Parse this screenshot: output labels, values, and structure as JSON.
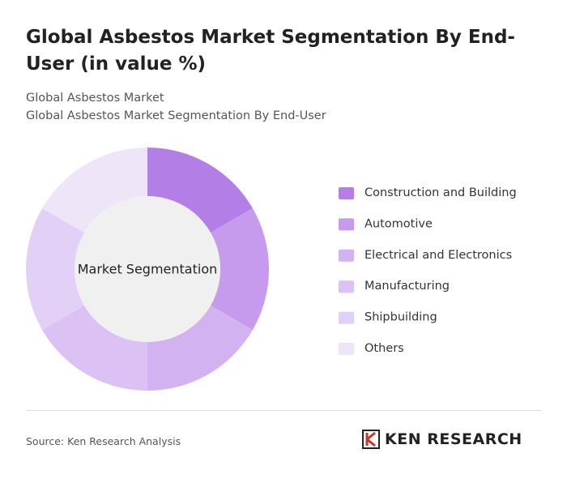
{
  "chart_data": {
    "type": "donut",
    "title": "Global Asbestos Market Segmentation By End-User (in value %)",
    "subtitle": [
      "Global Asbestos Market",
      "Global Asbestos Market Segmentation By End-User"
    ],
    "center_label": "Market Segmentation",
    "categories": [
      "Construction and Building",
      "Automotive",
      "Electrical and Electronics",
      "Manufacturing",
      "Shipbuilding",
      "Others"
    ],
    "values": [
      16.7,
      16.7,
      16.7,
      16.7,
      16.7,
      16.7
    ],
    "colors": [
      "#b47ee7",
      "#c69bed",
      "#d3b2f2",
      "#dbc1f4",
      "#e3d0f6",
      "#efe5f9"
    ],
    "source": "Source: Ken Research Analysis",
    "logo": "KEN RESEARCH"
  }
}
